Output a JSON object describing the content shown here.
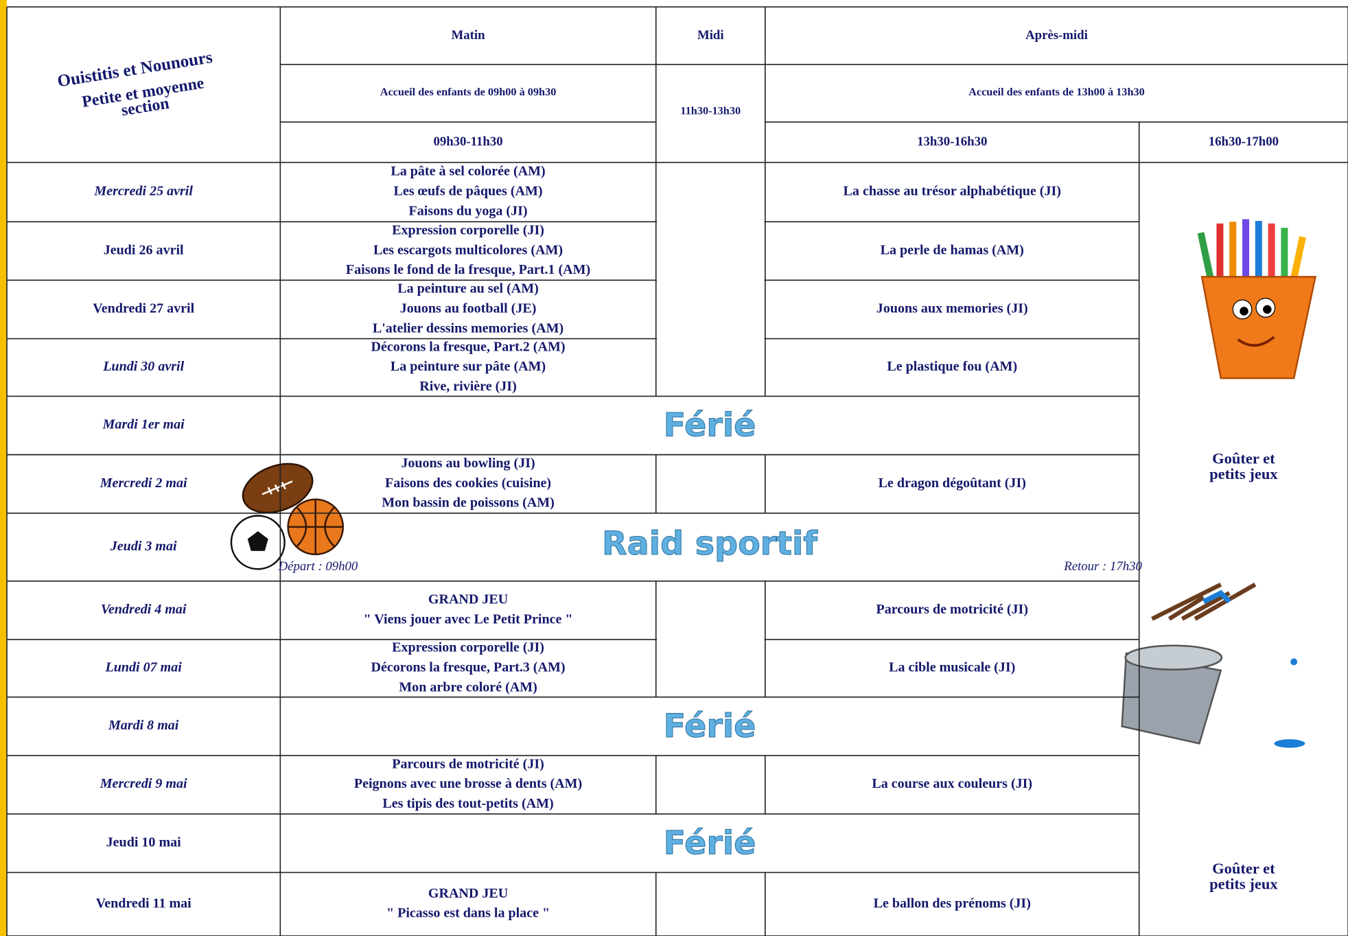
{
  "header": {
    "title": "Ouistitis et Nounours",
    "subtitle_lines": [
      "Petite et moyenne",
      "section"
    ],
    "columns": [
      "Matin",
      "Midi",
      "Après-midi"
    ],
    "arrival_morning": "Accueil des enfants de 09h00 à 09h30",
    "midi_hours": "11h30-13h30",
    "arrival_afternoon": "Accueil des enfants de 13h00 à 13h30",
    "slots": [
      "09h30-11h30",
      "13h30-16h30",
      "16h30-17h00"
    ]
  },
  "rows": [
    {
      "day": "Mercredi 25 avril",
      "morning": [
        "La pâte à sel colorée (AM)",
        "Les œufs de pâques (AM)",
        "Faisons du yoga (JI)"
      ],
      "afternoon": "La chasse au trésor alphabétique (JI)"
    },
    {
      "day": "Jeudi 26 avril",
      "morning": [
        "Expression corporelle (JI)",
        "Les escargots multicolores (AM)",
        "Faisons le fond de la fresque, Part.1 (AM)"
      ],
      "afternoon": "La perle de hamas (AM)"
    },
    {
      "day": "Vendredi 27 avril",
      "morning": [
        "La peinture au sel (AM)",
        "Jouons au football (JE)",
        "L'atelier dessins memories (AM)"
      ],
      "afternoon": "Jouons aux memories (JI)"
    },
    {
      "day": "Lundi 30 avril",
      "morning": [
        "Décorons la fresque, Part.2 (AM)",
        "La peinture sur pâte (AM)",
        "Rive, rivière (JI)"
      ],
      "afternoon": "Le plastique fou (AM)"
    },
    {
      "day": "Mardi 1er mai",
      "holiday": "Férié"
    },
    {
      "day": "Mercredi 2 mai",
      "morning": [
        "Jouons au bowling (JI)",
        "Faisons des cookies (cuisine)",
        "Mon bassin de poissons (AM)"
      ],
      "afternoon": "Le dragon dégoûtant (JI)"
    },
    {
      "day": "Jeudi 3 mai",
      "event": "Raid sportif",
      "departure": "Départ : 09h00",
      "return": "Retour : 17h30"
    },
    {
      "day": "Vendredi 4 mai",
      "morning": [
        "GRAND JEU",
        "\" Viens jouer avec Le Petit Prince \""
      ],
      "afternoon": "Parcours de motricité (JI)"
    },
    {
      "day": "Lundi 07 mai",
      "morning": [
        "Expression corporelle (JI)",
        "Décorons la fresque, Part.3 (AM)",
        "Mon arbre coloré (AM)"
      ],
      "afternoon": "La cible musicale (JI)"
    },
    {
      "day": "Mardi 8 mai",
      "holiday": "Férié"
    },
    {
      "day": "Mercredi 9 mai",
      "morning": [
        "Parcours de motricité (JI)",
        "Peignons avec une brosse à dents (AM)",
        "Les tipis des tout-petits (AM)"
      ],
      "afternoon": "La course aux couleurs (JI)"
    },
    {
      "day": "Jeudi 10 mai",
      "holiday": "Férié"
    },
    {
      "day": "Vendredi 11 mai",
      "morning": [
        "GRAND JEU",
        "\" Picasso est dans la place \""
      ],
      "afternoon": "Le ballon des prénoms (JI)"
    }
  ],
  "snack": [
    [
      "Goûter et",
      "petits jeux"
    ],
    [
      "Goûter et",
      "petits jeux"
    ]
  ]
}
